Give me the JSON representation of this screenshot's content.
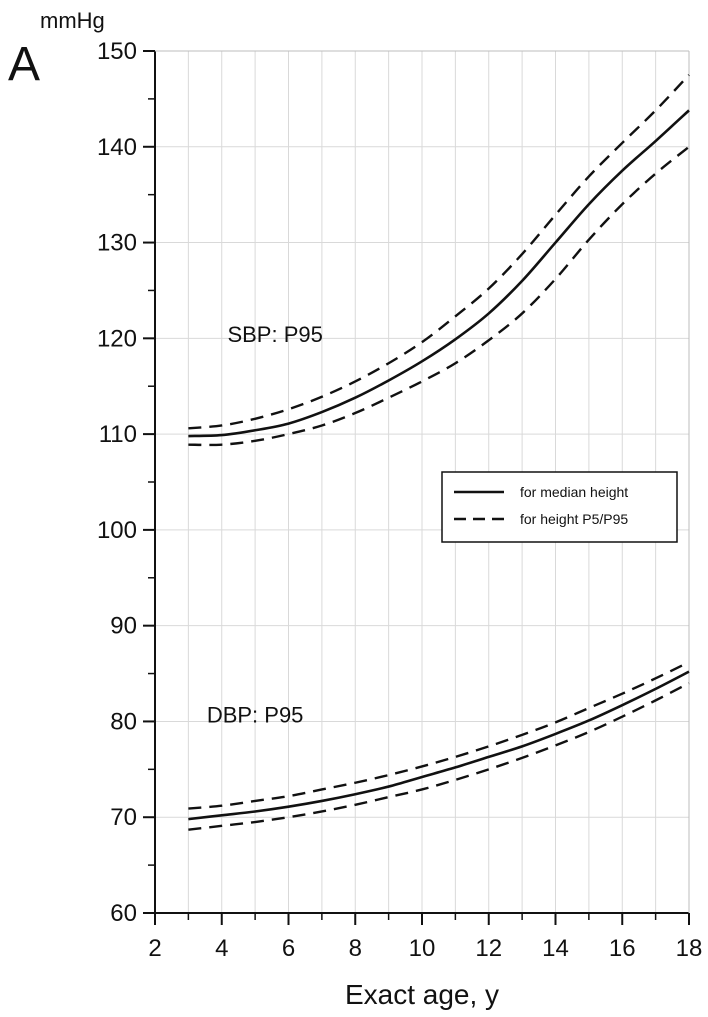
{
  "chart_data": {
    "type": "line",
    "panel_label": "A",
    "y_unit": "mmHg",
    "xlabel": "Exact age, y",
    "xlim": [
      2,
      18
    ],
    "ylim": [
      60,
      150
    ],
    "x_ticks": [
      2,
      4,
      6,
      8,
      10,
      12,
      14,
      16,
      18
    ],
    "y_ticks": [
      60,
      70,
      80,
      90,
      100,
      110,
      120,
      130,
      140,
      150
    ],
    "grid": true,
    "legend": {
      "position": "right-middle",
      "entries": [
        {
          "label": "for median height",
          "style": "solid"
        },
        {
          "label": "for height P5/P95",
          "style": "dashed"
        }
      ]
    },
    "annotations": [
      {
        "text": "SBP: P95",
        "x": 5.6,
        "y": 119.6
      },
      {
        "text": "DBP: P95",
        "x": 5.0,
        "y": 79.9
      }
    ],
    "series": [
      {
        "group": "SBP",
        "style": "dashed",
        "x": [
          3,
          4,
          5,
          6,
          7,
          8,
          9,
          10,
          11,
          12,
          13,
          14,
          15,
          16,
          17,
          18
        ],
        "y": [
          110.6,
          110.9,
          111.6,
          112.6,
          113.9,
          115.5,
          117.4,
          119.6,
          122.3,
          125.2,
          128.8,
          132.9,
          136.9,
          140.4,
          143.8,
          147.5
        ]
      },
      {
        "group": "SBP",
        "style": "solid",
        "x": [
          3,
          4,
          5,
          6,
          7,
          8,
          9,
          10,
          11,
          12,
          13,
          14,
          15,
          16,
          17,
          18
        ],
        "y": [
          109.8,
          109.9,
          110.4,
          111.1,
          112.3,
          113.8,
          115.6,
          117.6,
          119.9,
          122.6,
          126.0,
          130.0,
          134.0,
          137.5,
          140.6,
          143.8
        ]
      },
      {
        "group": "SBP",
        "style": "dashed",
        "x": [
          3,
          4,
          5,
          6,
          7,
          8,
          9,
          10,
          11,
          12,
          13,
          14,
          15,
          16,
          17,
          18
        ],
        "y": [
          108.9,
          108.9,
          109.3,
          110.0,
          110.9,
          112.2,
          113.8,
          115.5,
          117.4,
          119.8,
          122.6,
          126.2,
          130.3,
          134.0,
          137.2,
          140.0
        ]
      },
      {
        "group": "DBP",
        "style": "dashed",
        "x": [
          3,
          4,
          5,
          6,
          7,
          8,
          9,
          10,
          11,
          12,
          13,
          14,
          15,
          16,
          17,
          18
        ],
        "y": [
          70.9,
          71.2,
          71.7,
          72.2,
          72.9,
          73.6,
          74.4,
          75.3,
          76.3,
          77.4,
          78.6,
          79.9,
          81.4,
          82.9,
          84.5,
          86.2
        ]
      },
      {
        "group": "DBP",
        "style": "solid",
        "x": [
          3,
          4,
          5,
          6,
          7,
          8,
          9,
          10,
          11,
          12,
          13,
          14,
          15,
          16,
          17,
          18
        ],
        "y": [
          69.8,
          70.2,
          70.6,
          71.1,
          71.7,
          72.4,
          73.2,
          74.2,
          75.2,
          76.3,
          77.4,
          78.7,
          80.1,
          81.7,
          83.4,
          85.2
        ]
      },
      {
        "group": "DBP",
        "style": "dashed",
        "x": [
          3,
          4,
          5,
          6,
          7,
          8,
          9,
          10,
          11,
          12,
          13,
          14,
          15,
          16,
          17,
          18
        ],
        "y": [
          68.7,
          69.1,
          69.5,
          70.0,
          70.6,
          71.3,
          72.1,
          72.9,
          73.9,
          75.0,
          76.2,
          77.5,
          78.9,
          80.5,
          82.2,
          84.0
        ]
      }
    ]
  }
}
